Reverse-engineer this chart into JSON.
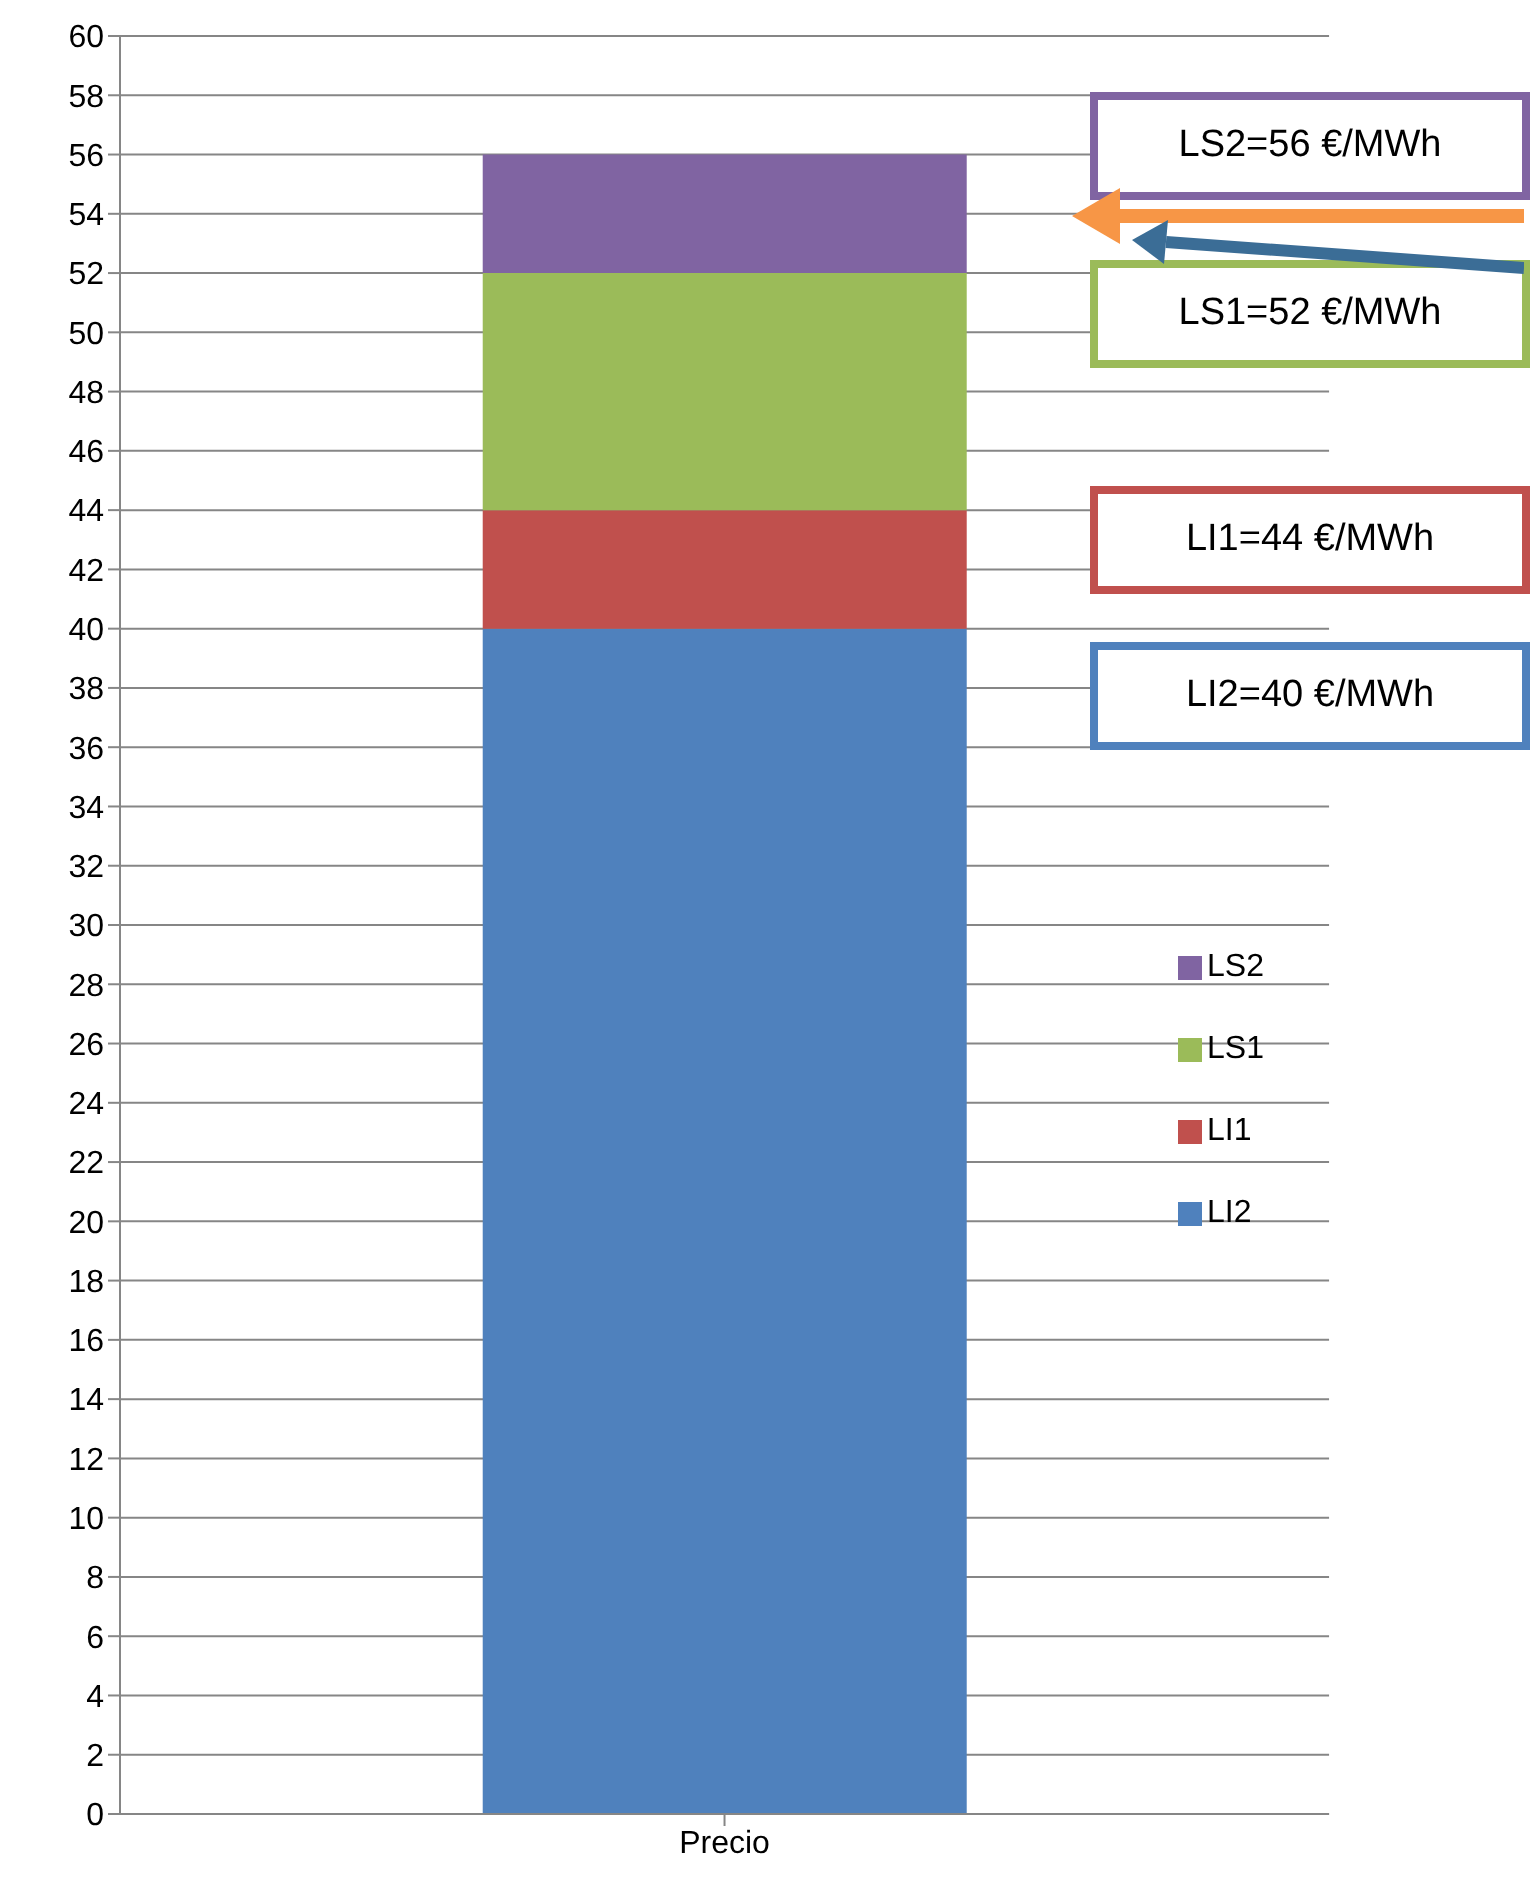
{
  "chart_data": {
    "type": "bar",
    "stacked": true,
    "categories": [
      "Precio"
    ],
    "series": [
      {
        "name": "LI2",
        "color": "#4f81bd",
        "values": [
          40
        ]
      },
      {
        "name": "LI1",
        "color": "#c0504d",
        "values": [
          4
        ]
      },
      {
        "name": "LS1",
        "color": "#9bbb59",
        "values": [
          8
        ]
      },
      {
        "name": "LS2",
        "color": "#8064a2",
        "values": [
          4
        ]
      }
    ],
    "ylim": [
      0,
      60
    ],
    "yticks": [
      0,
      2,
      4,
      6,
      8,
      10,
      12,
      14,
      16,
      18,
      20,
      22,
      24,
      26,
      28,
      30,
      32,
      34,
      36,
      38,
      40,
      42,
      44,
      46,
      48,
      50,
      52,
      54,
      56,
      58,
      60
    ],
    "grid": "y",
    "legend": "right",
    "annotations": [
      "LS2=56 €/MWh",
      "LS1=52 €/MWh",
      "LI1=44 €/MWh",
      "LI2=40 €/MWh"
    ]
  }
}
